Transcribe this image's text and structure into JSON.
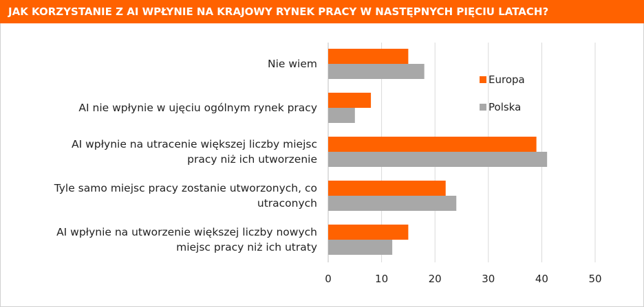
{
  "header": {
    "title": "JAK KORZYSTANIE Z AI WPŁYNIE NA KRAJOWY RYNEK PRACY W NASTĘPNYCH PIĘCIU LATACH?"
  },
  "chart_data": {
    "type": "bar",
    "orientation": "horizontal",
    "categories": [
      "Nie wiem",
      "AI nie wpłynie w ujęciu ogólnym rynek pracy",
      "AI wpłynie na utracenie większej liczby miejsc pracy niż ich utworzenie",
      "Tyle samo miejsc pracy zostanie utworzonych, co utraconych",
      "AI wpłynie na utworzenie większej liczby nowych miejsc pracy niż ich utraty"
    ],
    "category_lines": [
      [
        "Nie wiem"
      ],
      [
        "AI nie wpłynie w ujęciu ogólnym rynek pracy"
      ],
      [
        "AI wpłynie na utracenie większej liczby miejsc",
        "pracy niż ich utworzenie"
      ],
      [
        "Tyle samo miejsc pracy zostanie utworzonych, co",
        "utraconych"
      ],
      [
        "AI wpłynie na utworzenie większej liczby nowych",
        "miejsc pracy niż ich utraty"
      ]
    ],
    "series": [
      {
        "name": "Europa",
        "color": "#ff6200",
        "values": [
          15,
          8,
          39,
          22,
          15
        ]
      },
      {
        "name": "Polska",
        "color": "#a8a8a8",
        "values": [
          18,
          5,
          41,
          24,
          12
        ]
      }
    ],
    "xlim": [
      0,
      50
    ],
    "xticks": [
      "0",
      "10",
      "20",
      "30",
      "40",
      "50"
    ],
    "grid": "vertical",
    "legend": "top-right",
    "gridline_color": "#d9d9d9"
  }
}
